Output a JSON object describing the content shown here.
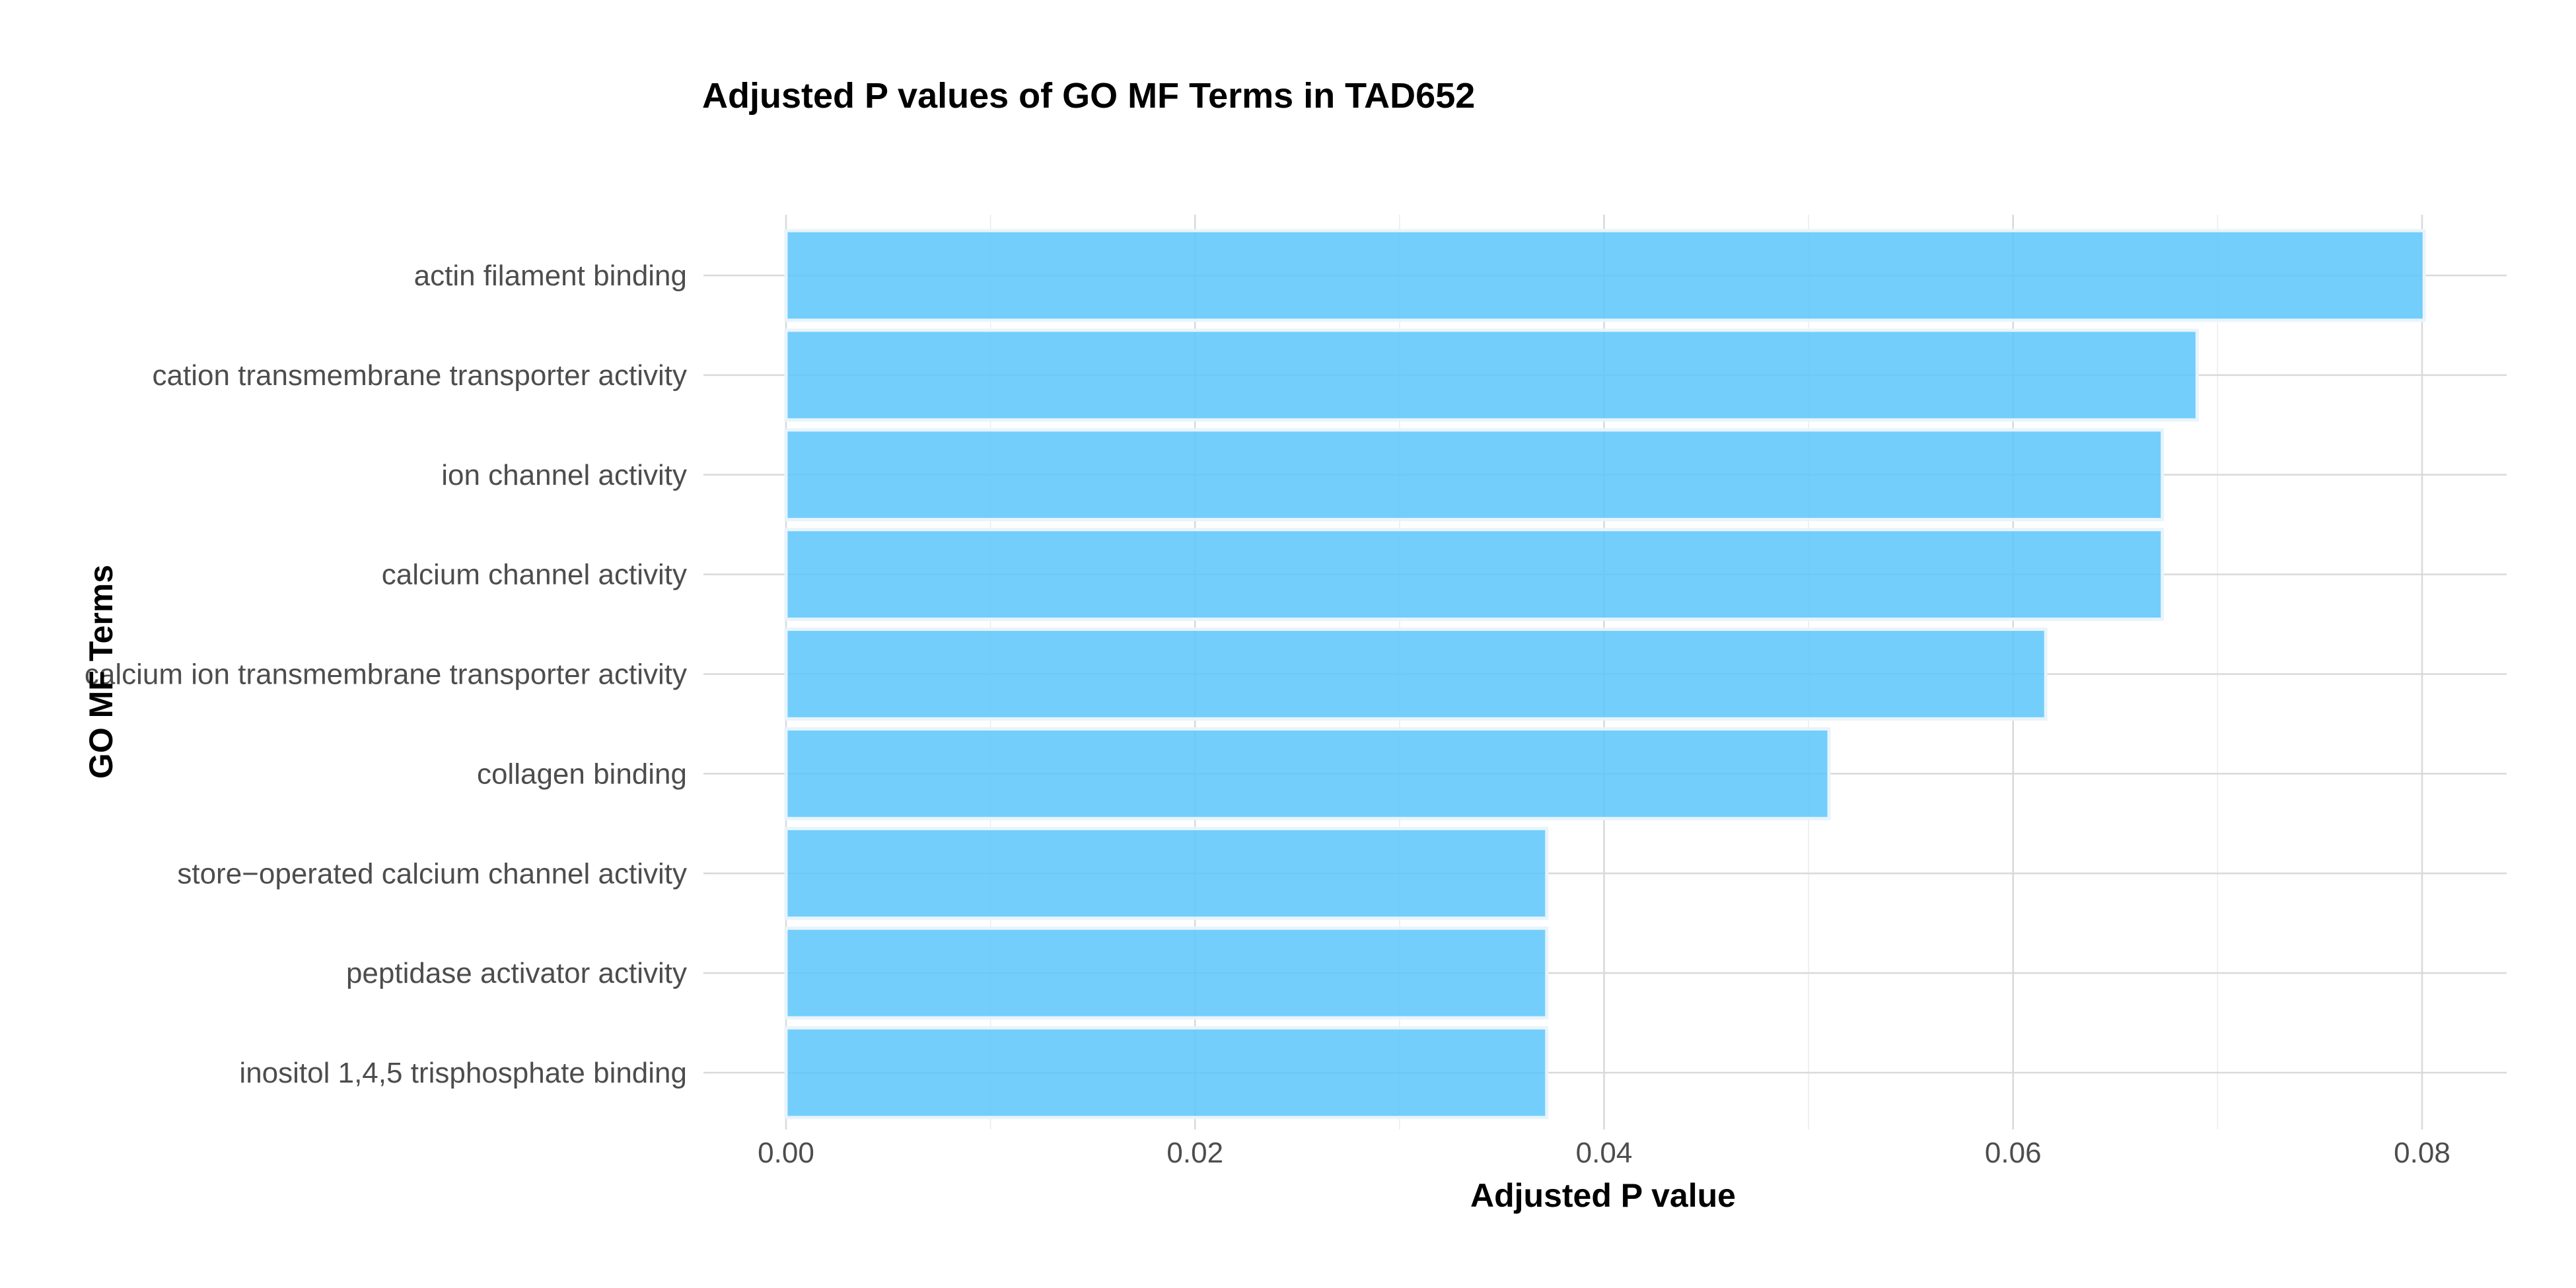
{
  "chart_data": {
    "type": "bar",
    "orientation": "horizontal",
    "title": "Adjusted P values of GO MF Terms in TAD652",
    "xlabel": "Adjusted P value",
    "ylabel": "GO MF Terms",
    "categories": [
      "actin filament binding",
      "cation transmembrane transporter activity",
      "ion channel activity",
      "calcium channel activity",
      "calcium ion transmembrane transporter activity",
      "collagen binding",
      "store−operated calcium channel activity",
      "peptidase activator activity",
      "inositol 1,4,5 trisphosphate binding"
    ],
    "values": [
      0.0801,
      0.069,
      0.0673,
      0.0673,
      0.0616,
      0.051,
      0.0372,
      0.0372,
      0.0372
    ],
    "xticks": [
      0.0,
      0.02,
      0.04,
      0.06,
      0.08
    ],
    "xtick_labels": [
      "0.00",
      "0.02",
      "0.04",
      "0.06",
      "0.08"
    ],
    "xlim": [
      -0.004,
      0.0842
    ],
    "grid": true,
    "bar_color": "#5bc6fa"
  }
}
